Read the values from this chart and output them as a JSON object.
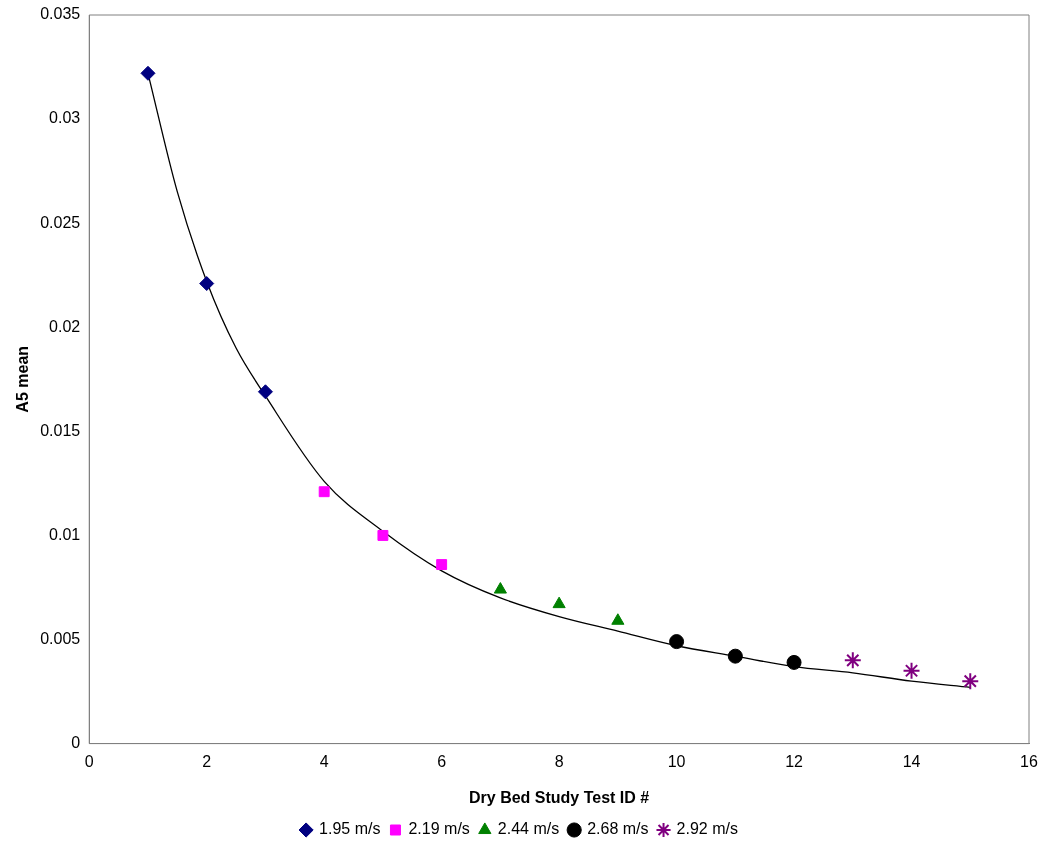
{
  "chart_data": {
    "type": "scatter",
    "xlabel": "Dry Bed Study Test ID #",
    "ylabel": "A5 mean",
    "xlim": [
      0,
      16
    ],
    "xticks": [
      0,
      2,
      4,
      6,
      8,
      10,
      12,
      14,
      16
    ],
    "ylim": [
      0,
      0.035
    ],
    "yticks": [
      0,
      0.005,
      0.01,
      0.015,
      0.02,
      0.025,
      0.03,
      0.035
    ],
    "grid": false,
    "legend": "bottom",
    "series": [
      {
        "name": "1.95 m/s",
        "color": "#000080",
        "marker": "diamond",
        "x": [
          1,
          2,
          3
        ],
        "values": [
          0.0322,
          0.0221,
          0.0169
        ]
      },
      {
        "name": "2.19 m/s",
        "color": "#ff00ff",
        "marker": "square",
        "x": [
          4,
          5,
          6
        ],
        "values": [
          0.0121,
          0.01,
          0.0086
        ]
      },
      {
        "name": "2.44 m/s",
        "color": "#008000",
        "marker": "triangle",
        "x": [
          7,
          8,
          9
        ],
        "values": [
          0.0074,
          0.0067,
          0.0059
        ]
      },
      {
        "name": "2.68 m/s",
        "color": "#000000",
        "marker": "circle",
        "x": [
          10,
          11,
          12
        ],
        "values": [
          0.0049,
          0.0042,
          0.0039
        ]
      },
      {
        "name": "2.92 m/s",
        "color": "#800080",
        "marker": "cross",
        "x": [
          13,
          14,
          15
        ],
        "values": [
          0.004,
          0.0035,
          0.003
        ]
      },
      {
        "type": "line",
        "color": "#000000",
        "marker": "none",
        "line_style": "solid",
        "x": [
          1,
          1.5,
          2,
          2.5,
          3,
          4,
          5,
          6,
          7,
          8,
          9,
          10,
          11,
          12,
          13,
          14,
          15
        ],
        "values": [
          0.0322,
          0.0265,
          0.0222,
          0.019,
          0.0167,
          0.0126,
          0.0102,
          0.0083,
          0.007,
          0.0061,
          0.0054,
          0.0047,
          0.0042,
          0.0037,
          0.0034,
          0.003,
          0.0027
        ]
      }
    ]
  }
}
